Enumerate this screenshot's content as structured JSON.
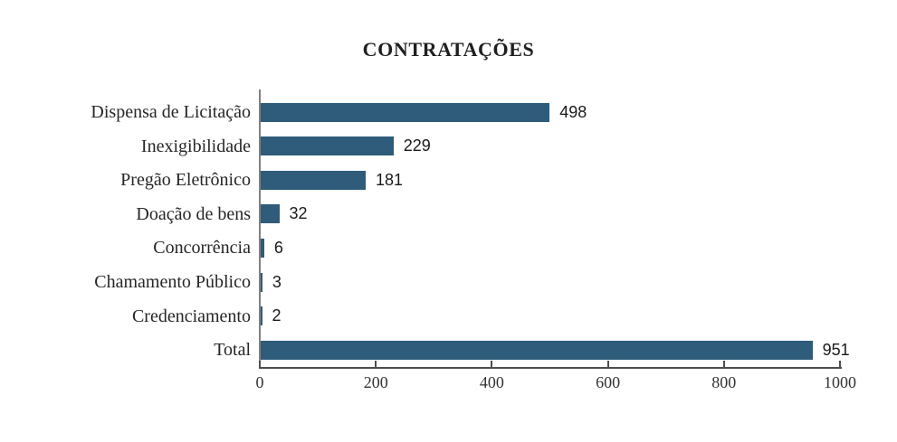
{
  "chart_data": {
    "type": "bar",
    "orientation": "horizontal",
    "title": "CONTRATAÇÕES",
    "categories": [
      "Dispensa de Licitação",
      "Inexigibilidade",
      "Pregão Eletrônico",
      "Doação de bens",
      "Concorrência",
      "Chamamento Público",
      "Credenciamento",
      "Total"
    ],
    "values": [
      498,
      229,
      181,
      32,
      6,
      3,
      2,
      951
    ],
    "xlabel": "",
    "ylabel": "",
    "xlim": [
      0,
      1000
    ],
    "x_ticks": [
      0,
      200,
      400,
      600,
      800,
      1000
    ],
    "grid": false,
    "legend": false,
    "data_labels": true
  },
  "colors": {
    "background": "#FFFFFF",
    "bar": "#2E5C7A",
    "title_text": "#1F1F1F",
    "category_text": "#262626",
    "value_text": "#1A1A1A",
    "tick_text": "#333333",
    "x_axis_line": "#4D4D4D",
    "y_axis_line": "#808080"
  }
}
